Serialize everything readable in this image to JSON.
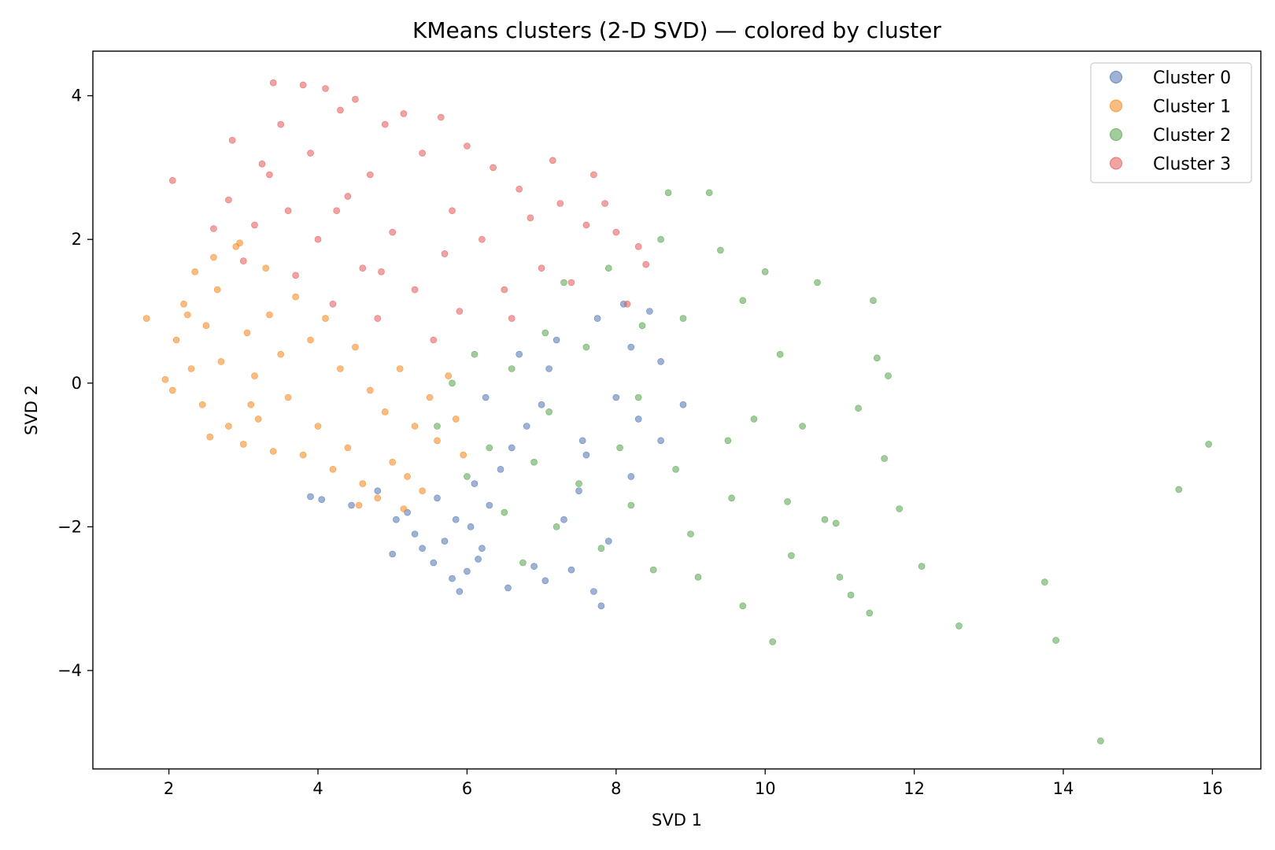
{
  "chart_data": {
    "type": "scatter",
    "title": "KMeans clusters (2-D SVD) — colored by cluster",
    "xlabel": "SVD 1",
    "ylabel": "SVD 2",
    "xlim": [
      0.98,
      16.65
    ],
    "ylim": [
      -5.37,
      4.62
    ],
    "xticks": [
      2,
      4,
      6,
      8,
      10,
      12,
      14,
      16
    ],
    "yticks": [
      -4,
      -2,
      0,
      2,
      4
    ],
    "grid": false,
    "legend_position": "top-right",
    "series": [
      {
        "name": "Cluster 0",
        "color": "#4c72b0",
        "points": [
          [
            3.9,
            -1.58
          ],
          [
            4.05,
            -1.62
          ],
          [
            4.45,
            -1.7
          ],
          [
            4.8,
            -1.5
          ],
          [
            5.0,
            -2.38
          ],
          [
            5.05,
            -1.9
          ],
          [
            5.2,
            -1.8
          ],
          [
            5.3,
            -2.1
          ],
          [
            5.4,
            -2.3
          ],
          [
            5.55,
            -2.5
          ],
          [
            5.6,
            -1.6
          ],
          [
            5.7,
            -2.2
          ],
          [
            5.8,
            -2.72
          ],
          [
            5.9,
            -2.9
          ],
          [
            6.0,
            -2.62
          ],
          [
            6.05,
            -2.0
          ],
          [
            6.1,
            -1.4
          ],
          [
            6.2,
            -2.3
          ],
          [
            6.3,
            -1.7
          ],
          [
            6.45,
            -1.2
          ],
          [
            6.6,
            -0.9
          ],
          [
            6.8,
            -0.6
          ],
          [
            7.0,
            -0.3
          ],
          [
            7.1,
            0.2
          ],
          [
            7.2,
            0.6
          ],
          [
            7.3,
            -1.9
          ],
          [
            7.4,
            -2.6
          ],
          [
            7.5,
            -1.5
          ],
          [
            7.6,
            -1.0
          ],
          [
            7.7,
            -2.9
          ],
          [
            7.75,
            0.9
          ],
          [
            7.8,
            -3.1
          ],
          [
            7.9,
            -2.2
          ],
          [
            8.0,
            -0.2
          ],
          [
            8.1,
            1.1
          ],
          [
            8.2,
            -1.3
          ],
          [
            8.3,
            -0.5
          ],
          [
            8.45,
            1.0
          ],
          [
            8.6,
            -0.8
          ],
          [
            8.9,
            -0.3
          ],
          [
            7.05,
            -2.75
          ],
          [
            6.55,
            -2.85
          ],
          [
            6.9,
            -2.55
          ],
          [
            6.25,
            -0.2
          ],
          [
            6.7,
            0.4
          ],
          [
            8.2,
            0.5
          ],
          [
            8.6,
            0.3
          ],
          [
            7.55,
            -0.8
          ],
          [
            5.85,
            -1.9
          ],
          [
            6.15,
            -2.45
          ]
        ]
      },
      {
        "name": "Cluster 1",
        "color": "#f58518",
        "points": [
          [
            1.7,
            0.9
          ],
          [
            1.95,
            0.05
          ],
          [
            2.05,
            -0.1
          ],
          [
            2.1,
            0.6
          ],
          [
            2.2,
            1.1
          ],
          [
            2.3,
            0.2
          ],
          [
            2.35,
            1.55
          ],
          [
            2.45,
            -0.3
          ],
          [
            2.5,
            0.8
          ],
          [
            2.55,
            -0.75
          ],
          [
            2.65,
            1.3
          ],
          [
            2.7,
            0.3
          ],
          [
            2.8,
            -0.6
          ],
          [
            2.9,
            1.9
          ],
          [
            3.0,
            -0.85
          ],
          [
            3.05,
            0.7
          ],
          [
            3.15,
            0.1
          ],
          [
            3.2,
            -0.5
          ],
          [
            3.3,
            1.6
          ],
          [
            3.4,
            -0.95
          ],
          [
            3.5,
            0.4
          ],
          [
            3.6,
            -0.2
          ],
          [
            3.7,
            1.2
          ],
          [
            3.8,
            -1.0
          ],
          [
            3.9,
            0.6
          ],
          [
            4.0,
            -0.6
          ],
          [
            4.1,
            0.9
          ],
          [
            4.2,
            -1.2
          ],
          [
            4.3,
            0.2
          ],
          [
            4.4,
            -0.9
          ],
          [
            4.5,
            0.5
          ],
          [
            4.6,
            -1.4
          ],
          [
            4.7,
            -0.1
          ],
          [
            4.8,
            -1.6
          ],
          [
            4.9,
            -0.4
          ],
          [
            5.0,
            -1.1
          ],
          [
            5.1,
            0.2
          ],
          [
            5.2,
            -1.3
          ],
          [
            5.3,
            -0.6
          ],
          [
            5.4,
            -1.5
          ],
          [
            5.5,
            -0.2
          ],
          [
            5.6,
            -0.8
          ],
          [
            5.75,
            0.1
          ],
          [
            5.85,
            -0.5
          ],
          [
            5.95,
            -1.0
          ],
          [
            2.25,
            0.95
          ],
          [
            2.6,
            1.75
          ],
          [
            2.95,
            1.95
          ],
          [
            3.35,
            0.95
          ],
          [
            4.55,
            -1.7
          ],
          [
            5.15,
            -1.75
          ],
          [
            3.1,
            -0.3
          ]
        ]
      },
      {
        "name": "Cluster 2",
        "color": "#54a24b",
        "points": [
          [
            5.6,
            -0.6
          ],
          [
            5.8,
            0.0
          ],
          [
            6.0,
            -1.3
          ],
          [
            6.1,
            0.4
          ],
          [
            6.3,
            -0.9
          ],
          [
            6.5,
            -1.8
          ],
          [
            6.6,
            0.2
          ],
          [
            6.75,
            -2.5
          ],
          [
            6.9,
            -1.1
          ],
          [
            7.05,
            0.7
          ],
          [
            7.2,
            -2.0
          ],
          [
            7.3,
            1.4
          ],
          [
            7.5,
            -1.4
          ],
          [
            7.6,
            0.5
          ],
          [
            7.8,
            -2.3
          ],
          [
            7.9,
            1.6
          ],
          [
            8.05,
            -0.9
          ],
          [
            8.2,
            -1.7
          ],
          [
            8.35,
            0.8
          ],
          [
            8.5,
            -2.6
          ],
          [
            8.6,
            2.0
          ],
          [
            8.7,
            2.65
          ],
          [
            8.8,
            -1.2
          ],
          [
            8.9,
            0.9
          ],
          [
            9.0,
            -2.1
          ],
          [
            9.1,
            -2.7
          ],
          [
            9.25,
            2.65
          ],
          [
            9.4,
            1.85
          ],
          [
            9.55,
            -1.6
          ],
          [
            9.7,
            1.15
          ],
          [
            9.7,
            -3.1
          ],
          [
            9.85,
            -0.5
          ],
          [
            10.0,
            1.55
          ],
          [
            10.1,
            -3.6
          ],
          [
            10.2,
            0.4
          ],
          [
            10.35,
            -2.4
          ],
          [
            10.5,
            -0.6
          ],
          [
            10.7,
            1.4
          ],
          [
            10.8,
            -1.9
          ],
          [
            11.0,
            -2.7
          ],
          [
            11.15,
            -2.95
          ],
          [
            11.25,
            -0.35
          ],
          [
            11.45,
            1.15
          ],
          [
            11.5,
            0.35
          ],
          [
            11.6,
            -1.05
          ],
          [
            11.65,
            0.1
          ],
          [
            11.8,
            -1.75
          ],
          [
            11.4,
            -3.2
          ],
          [
            12.1,
            -2.55
          ],
          [
            12.6,
            -3.38
          ],
          [
            13.75,
            -2.77
          ],
          [
            13.9,
            -3.58
          ],
          [
            14.5,
            -4.98
          ],
          [
            15.55,
            -1.48
          ],
          [
            15.95,
            -0.85
          ],
          [
            8.3,
            -0.2
          ],
          [
            9.5,
            -0.8
          ],
          [
            10.3,
            -1.65
          ],
          [
            10.95,
            -1.95
          ],
          [
            7.1,
            -0.4
          ]
        ]
      },
      {
        "name": "Cluster 3",
        "color": "#e45756",
        "points": [
          [
            2.05,
            2.82
          ],
          [
            2.6,
            2.15
          ],
          [
            2.8,
            2.55
          ],
          [
            2.85,
            3.38
          ],
          [
            3.0,
            1.7
          ],
          [
            3.15,
            2.2
          ],
          [
            3.25,
            3.05
          ],
          [
            3.4,
            4.18
          ],
          [
            3.5,
            3.6
          ],
          [
            3.6,
            2.4
          ],
          [
            3.7,
            1.5
          ],
          [
            3.8,
            4.15
          ],
          [
            3.9,
            3.2
          ],
          [
            4.0,
            2.0
          ],
          [
            4.1,
            4.1
          ],
          [
            4.2,
            1.1
          ],
          [
            4.3,
            3.8
          ],
          [
            4.4,
            2.6
          ],
          [
            4.5,
            3.95
          ],
          [
            4.6,
            1.6
          ],
          [
            4.7,
            2.9
          ],
          [
            4.8,
            0.9
          ],
          [
            4.9,
            3.6
          ],
          [
            5.0,
            2.1
          ],
          [
            5.15,
            3.75
          ],
          [
            5.3,
            1.3
          ],
          [
            5.4,
            3.2
          ],
          [
            5.55,
            0.6
          ],
          [
            5.65,
            3.7
          ],
          [
            5.8,
            2.4
          ],
          [
            5.9,
            1.0
          ],
          [
            6.0,
            3.3
          ],
          [
            6.2,
            2.0
          ],
          [
            6.35,
            3.0
          ],
          [
            6.5,
            1.3
          ],
          [
            6.7,
            2.7
          ],
          [
            6.85,
            2.3
          ],
          [
            7.0,
            1.6
          ],
          [
            7.15,
            3.1
          ],
          [
            7.25,
            2.5
          ],
          [
            7.4,
            1.4
          ],
          [
            7.6,
            2.2
          ],
          [
            7.7,
            2.9
          ],
          [
            7.85,
            2.5
          ],
          [
            8.0,
            2.1
          ],
          [
            8.15,
            1.1
          ],
          [
            8.3,
            1.9
          ],
          [
            8.4,
            1.65
          ],
          [
            4.25,
            2.4
          ],
          [
            5.7,
            1.8
          ],
          [
            6.6,
            0.9
          ],
          [
            3.35,
            2.9
          ],
          [
            4.85,
            1.55
          ]
        ]
      }
    ]
  }
}
